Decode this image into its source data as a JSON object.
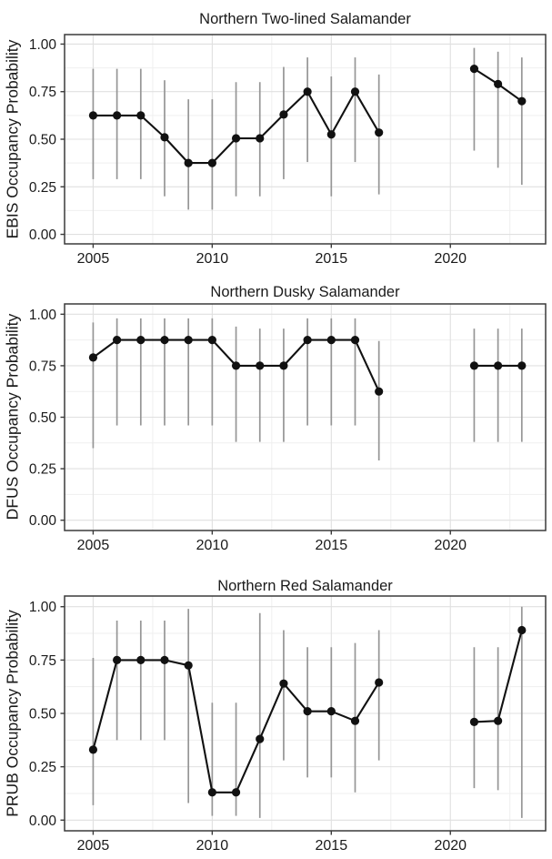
{
  "page": {
    "background": "#ffffff",
    "text_color": "#1a1a1a",
    "grid_major_color": "#e0e0e0",
    "grid_minor_color": "#efefef",
    "panel_border_color": "#3a3a3a",
    "line_color": "#111111",
    "point_color": "#111111",
    "errorbar_color": "#969696"
  },
  "chart_data": [
    {
      "type": "line",
      "title": "Northern Two-lined Salamander",
      "xlabel": "",
      "ylabel": "EBIS Occupancy Probability",
      "xlim": [
        2003.8,
        2024.0
      ],
      "ylim": [
        -0.05,
        1.05
      ],
      "xticks": [
        2005,
        2010,
        2015,
        2020
      ],
      "xtick_labels": [
        "2005",
        "2010",
        "2015",
        "2020"
      ],
      "yticks": [
        0,
        0.25,
        0.5,
        0.75,
        1
      ],
      "ytick_labels": [
        "0.00",
        "0.25",
        "0.50",
        "0.75",
        "1.00"
      ],
      "grid": "major+minor",
      "legend": "none",
      "series": [
        {
          "name": "EBIS occupancy estimate",
          "x": [
            2005,
            2006,
            2007,
            2008,
            2009,
            2010,
            2011,
            2012,
            2013,
            2014,
            2015,
            2016,
            2017,
            2021,
            2022,
            2023
          ],
          "y": [
            0.625,
            0.625,
            0.625,
            0.51,
            0.375,
            0.375,
            0.505,
            0.505,
            0.63,
            0.75,
            0.525,
            0.75,
            0.535,
            0.87,
            0.79,
            0.7
          ],
          "lower": [
            0.29,
            0.29,
            0.29,
            0.2,
            0.13,
            0.13,
            0.2,
            0.2,
            0.29,
            0.38,
            0.2,
            0.38,
            0.21,
            0.44,
            0.35,
            0.26
          ],
          "upper": [
            0.87,
            0.87,
            0.87,
            0.81,
            0.71,
            0.71,
            0.8,
            0.8,
            0.88,
            0.93,
            0.83,
            0.93,
            0.84,
            0.98,
            0.96,
            0.93
          ]
        }
      ]
    },
    {
      "type": "line",
      "title": "Northern Dusky Salamander",
      "xlabel": "",
      "ylabel": "DFUS Occupancy Probability",
      "xlim": [
        2003.8,
        2024.0
      ],
      "ylim": [
        -0.05,
        1.05
      ],
      "xticks": [
        2005,
        2010,
        2015,
        2020
      ],
      "xtick_labels": [
        "2005",
        "2010",
        "2015",
        "2020"
      ],
      "yticks": [
        0,
        0.25,
        0.5,
        0.75,
        1
      ],
      "ytick_labels": [
        "0.00",
        "0.25",
        "0.50",
        "0.75",
        "1.00"
      ],
      "grid": "major+minor",
      "legend": "none",
      "series": [
        {
          "name": "DFUS occupancy estimate",
          "x": [
            2005,
            2006,
            2007,
            2008,
            2009,
            2010,
            2011,
            2012,
            2013,
            2014,
            2015,
            2016,
            2017,
            2021,
            2022,
            2023
          ],
          "y": [
            0.79,
            0.875,
            0.875,
            0.875,
            0.875,
            0.875,
            0.75,
            0.75,
            0.75,
            0.875,
            0.875,
            0.875,
            0.625,
            0.75,
            0.75,
            0.75
          ],
          "lower": [
            0.35,
            0.46,
            0.46,
            0.46,
            0.46,
            0.46,
            0.38,
            0.38,
            0.38,
            0.46,
            0.46,
            0.46,
            0.29,
            0.38,
            0.38,
            0.38
          ],
          "upper": [
            0.96,
            0.98,
            0.98,
            0.98,
            0.98,
            0.98,
            0.94,
            0.93,
            0.93,
            0.98,
            0.98,
            0.98,
            0.87,
            0.93,
            0.93,
            0.93
          ]
        }
      ]
    },
    {
      "type": "line",
      "title": "Northern Red Salamander",
      "xlabel": "",
      "ylabel": "PRUB Occupancy Probability",
      "xlim": [
        2003.8,
        2024.0
      ],
      "ylim": [
        -0.05,
        1.05
      ],
      "xticks": [
        2005,
        2010,
        2015,
        2020
      ],
      "xtick_labels": [
        "2005",
        "2010",
        "2015",
        "2020"
      ],
      "yticks": [
        0,
        0.25,
        0.5,
        0.75,
        1
      ],
      "ytick_labels": [
        "0.00",
        "0.25",
        "0.50",
        "0.75",
        "1.00"
      ],
      "grid": "major+minor",
      "legend": "none",
      "series": [
        {
          "name": "PRUB occupancy estimate",
          "x": [
            2005,
            2006,
            2007,
            2008,
            2009,
            2010,
            2011,
            2012,
            2013,
            2014,
            2015,
            2016,
            2017,
            2021,
            2022,
            2023
          ],
          "y": [
            0.33,
            0.75,
            0.75,
            0.75,
            0.725,
            0.13,
            0.13,
            0.38,
            0.64,
            0.51,
            0.51,
            0.465,
            0.645,
            0.46,
            0.465,
            0.89
          ],
          "lower": [
            0.07,
            0.375,
            0.375,
            0.375,
            0.08,
            0.02,
            0.02,
            0.01,
            0.28,
            0.2,
            0.2,
            0.13,
            0.28,
            0.15,
            0.14,
            0.01
          ],
          "upper": [
            0.76,
            0.935,
            0.935,
            0.935,
            0.99,
            0.55,
            0.55,
            0.97,
            0.89,
            0.81,
            0.81,
            0.83,
            0.89,
            0.81,
            0.81,
            1.0
          ]
        }
      ]
    }
  ]
}
